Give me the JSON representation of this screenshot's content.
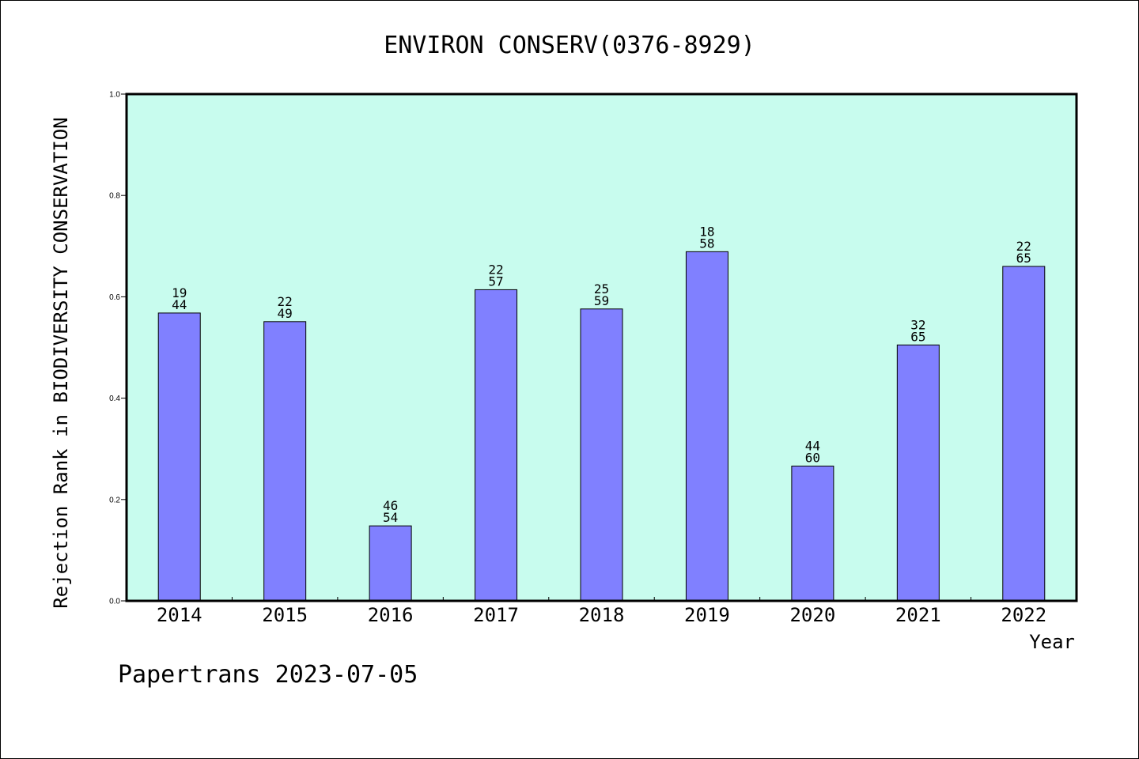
{
  "chart_data": {
    "type": "bar",
    "title": "ENVIRON CONSERV(0376-8929)",
    "xlabel": "Year",
    "ylabel": "Rejection Rank in BIODIVERSITY CONSERVATION",
    "ylim": [
      0.0,
      1.0
    ],
    "yticks": [
      "0.0",
      "0.2",
      "0.4",
      "0.6",
      "0.8",
      "1.0"
    ],
    "ytick_values": [
      0.0,
      0.2,
      0.4,
      0.6,
      0.8,
      1.0
    ],
    "categories": [
      "2014",
      "2015",
      "2016",
      "2017",
      "2018",
      "2019",
      "2020",
      "2021",
      "2022"
    ],
    "values": [
      0.568,
      0.551,
      0.148,
      0.614,
      0.576,
      0.689,
      0.266,
      0.505,
      0.66
    ],
    "labels_top": [
      "19",
      "22",
      "46",
      "22",
      "25",
      "18",
      "44",
      "32",
      "22"
    ],
    "labels_bottom": [
      "44",
      "49",
      "54",
      "57",
      "59",
      "58",
      "60",
      "65",
      "65"
    ],
    "grid": false,
    "colors": {
      "plot_background": "#c8fcee",
      "bar_fill": "#8080ff",
      "bar_stroke": "#000000"
    }
  },
  "footer": "Papertrans 2023-07-05"
}
